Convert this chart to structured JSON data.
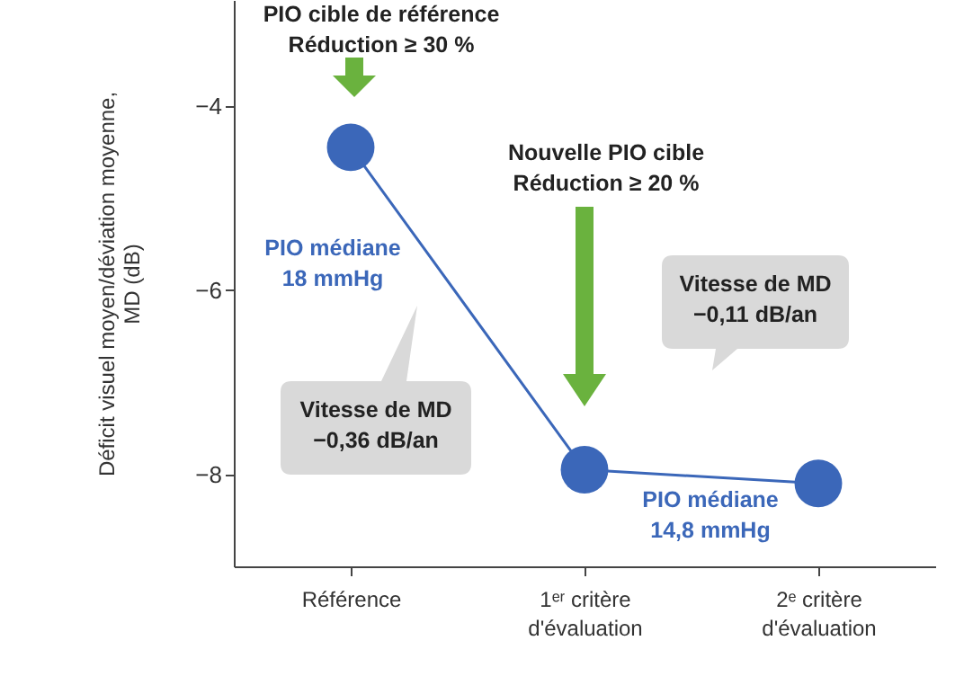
{
  "chart_data": {
    "type": "line",
    "ylabel": "Déficit visuel moyen/déviation moyenne,\nMD (dB)",
    "categories": [
      "Référence",
      "1ᵉʳ critère\nd'évaluation",
      "2ᵉ critère\nd'évaluation"
    ],
    "series": [
      {
        "color": "#3b67b9",
        "values": [
          -4.45,
          -7.95,
          -8.1
        ]
      }
    ],
    "ylim": [
      -9,
      -2.85
    ],
    "yticks": [
      -4,
      -6,
      -8
    ],
    "marker": "circle",
    "annotations": [
      "PIO cible de référence\nRéduction ≥ 30 %",
      "Nouvelle PIO cible\nRéduction ≥ 20 %",
      "PIO médiane\n18 mmHg",
      "Vitesse de MD\n−0,36 dB/an",
      "Vitesse de MD\n−0,11 dB/an",
      "PIO médiane\n14,8 mmHg"
    ]
  }
}
